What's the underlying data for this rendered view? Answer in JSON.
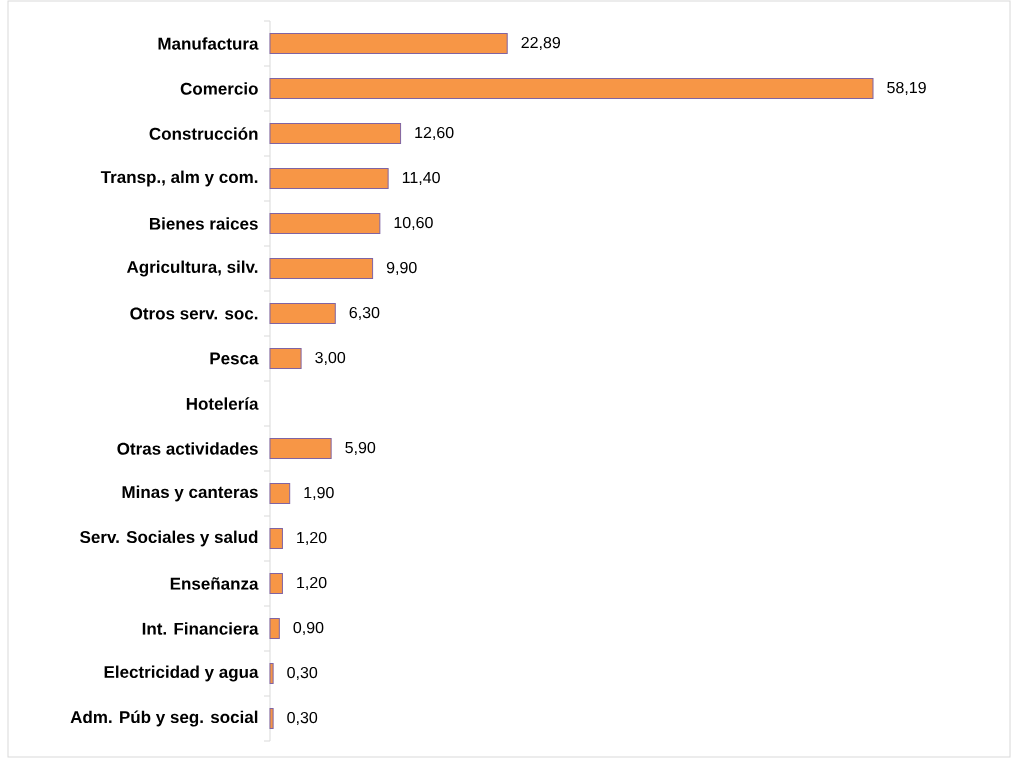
{
  "chart_data": {
    "type": "bar",
    "orientation": "horizontal",
    "categories": [
      "Manufactura",
      "Comercio",
      "Construcción",
      "Transp., alm y com.",
      "Bienes raices",
      "Agricultura, silv.",
      "Otros serv. soc.",
      "Pesca",
      "Hotelería",
      "Otras actividades",
      "Minas y canteras",
      "Serv. Sociales y salud",
      "Enseñanza",
      "Int. Financiera",
      "Electricidad y agua",
      "Adm. Púb y seg. social"
    ],
    "values": [
      22.89,
      58.19,
      12.6,
      11.4,
      10.6,
      9.9,
      6.3,
      3.0,
      null,
      5.9,
      1.9,
      1.2,
      1.2,
      0.9,
      0.3,
      0.3
    ],
    "value_labels": [
      "22,89",
      "58,19",
      "12,60",
      "11,40",
      "10,60",
      "9,90",
      "6,30",
      "3,00",
      null,
      "5,90",
      "1,90",
      "1,20",
      "1,20",
      "0,90",
      "0,30",
      "0,30"
    ],
    "color": "#f79646",
    "tick_labels": "y"
  }
}
